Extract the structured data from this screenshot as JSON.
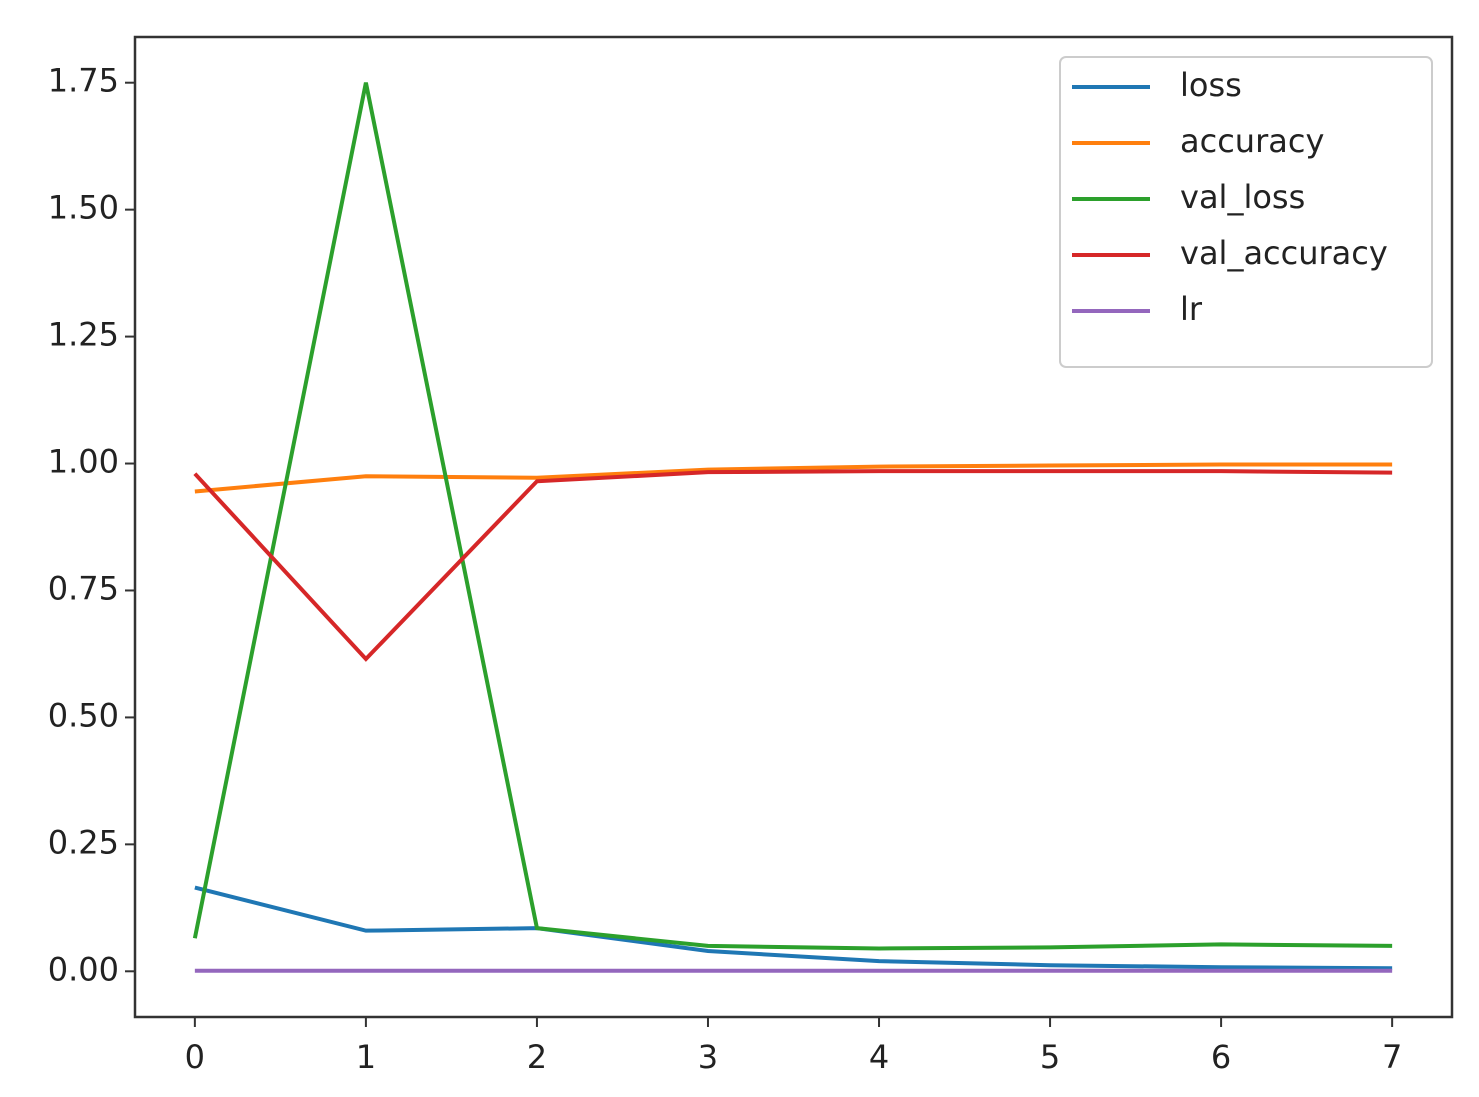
{
  "chart_data": {
    "type": "line",
    "x": [
      0,
      1,
      2,
      3,
      4,
      5,
      6,
      7
    ],
    "series": [
      {
        "name": "loss",
        "color": "#1f77b4",
        "values": [
          0.165,
          0.08,
          0.085,
          0.04,
          0.02,
          0.012,
          0.008,
          0.006
        ]
      },
      {
        "name": "accuracy",
        "color": "#ff7f0e",
        "values": [
          0.945,
          0.975,
          0.972,
          0.988,
          0.994,
          0.996,
          0.998,
          0.998
        ]
      },
      {
        "name": "val_loss",
        "color": "#2ca02c",
        "values": [
          0.065,
          1.75,
          0.085,
          0.05,
          0.045,
          0.047,
          0.053,
          0.05
        ]
      },
      {
        "name": "val_accuracy",
        "color": "#d62728",
        "values": [
          0.98,
          0.615,
          0.965,
          0.983,
          0.985,
          0.985,
          0.985,
          0.982
        ]
      },
      {
        "name": "lr",
        "color": "#9467bd",
        "values": [
          0.001,
          0.001,
          0.001,
          0.001,
          0.001,
          0.001,
          0.001,
          0.001
        ]
      }
    ],
    "xlim": [
      -0.35,
      7.35
    ],
    "ylim": [
      -0.09,
      1.84
    ],
    "xticks": [
      0,
      1,
      2,
      3,
      4,
      5,
      6,
      7
    ],
    "yticks": [
      {
        "value": 0,
        "label": "0.00"
      },
      {
        "value": 0.25,
        "label": "0.25"
      },
      {
        "value": 0.5,
        "label": "0.50"
      },
      {
        "value": 0.75,
        "label": "0.75"
      },
      {
        "value": 1,
        "label": "1.00"
      },
      {
        "value": 1.25,
        "label": "1.25"
      },
      {
        "value": 1.5,
        "label": "1.50"
      },
      {
        "value": 1.75,
        "label": "1.75"
      }
    ],
    "legend": "upper right"
  }
}
